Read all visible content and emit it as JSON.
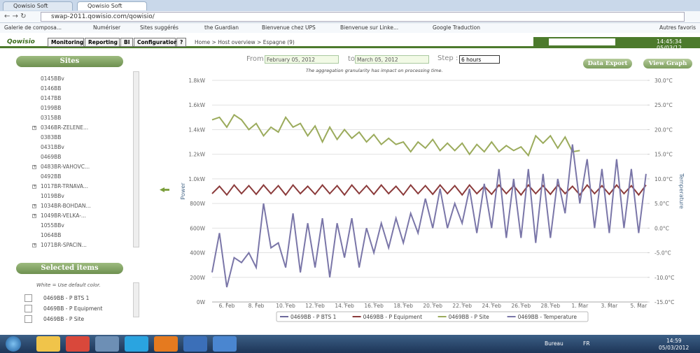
{
  "browser": {
    "tabs": [
      "Qowisio Soft",
      "Qowisio Soft"
    ],
    "url": "swap-2011.qowisio.com/qowisio/",
    "bookmarks": [
      "Galerie de composa...",
      "Numériser",
      "Sites suggérés",
      "the Guardian",
      "Bienvenue chez UPS",
      "Bienvenue sur Linke...",
      "Google Traduction"
    ],
    "other_bookmarks": "Autres favoris"
  },
  "app": {
    "logo": "Qowisio",
    "menu": [
      "Monitoring",
      "Reporting",
      "BI",
      "Configuration",
      "?"
    ],
    "breadcrumb": "Home > Host overview > Espagne (9)",
    "clock": "14:45:34 05/03/12"
  },
  "sites": {
    "title": "Sites",
    "items": [
      "0145BBv",
      "0146BB",
      "0147BB",
      "0199BB",
      "0315BB",
      "0346BR-ZELENE...",
      "0383BB",
      "0431BBv",
      "0469BB",
      "0483BR-VAHOVC...",
      "0492BB",
      "1017BR-TRNAVA...",
      "1019BBv",
      "1034BR-BOHDAN...",
      "1049BR-VELKA-...",
      "1055BBv",
      "1064BB",
      "1071BR-SPACIN..."
    ]
  },
  "selected": {
    "title": "Selected items",
    "hint": "White = Use default color.",
    "items": [
      "0469BB - P BTS 1",
      "0469BB - P Equipment",
      "0469BB - P Site"
    ]
  },
  "controls": {
    "from_label": "From",
    "from": "February 05, 2012",
    "to_label": "to",
    "to": "March 05, 2012",
    "step_label": "Step :",
    "step": "6 hours",
    "note": "The aggregation granularity has impact on processing time.",
    "buttons": [
      "Data Export",
      "View Graph"
    ]
  },
  "chart_data": {
    "type": "line",
    "y_label": "Power",
    "y2_label": "Temperature",
    "x": [
      5,
      5.5,
      6,
      6.5,
      7,
      7.5,
      8,
      8.5,
      9,
      9.5,
      10,
      10.5,
      11,
      11.5,
      12,
      12.5,
      13,
      13.5,
      14,
      14.5,
      15,
      15.5,
      16,
      16.5,
      17,
      17.5,
      18,
      18.5,
      19,
      19.5,
      20,
      20.5,
      21,
      21.5,
      22,
      22.5,
      23,
      23.5,
      24,
      24.5,
      25,
      25.5,
      26,
      26.5,
      27,
      27.5,
      28,
      28.5,
      29,
      29.5,
      30,
      30.5,
      31,
      31.5,
      32,
      32.5,
      33,
      33.5,
      34,
      34.5
    ],
    "xlim": [
      5,
      34.6
    ],
    "xticks": [
      {
        "value": 6,
        "label": "6. Feb"
      },
      {
        "value": 8,
        "label": "8. Feb"
      },
      {
        "value": 10,
        "label": "10. Feb"
      },
      {
        "value": 12,
        "label": "12. Feb"
      },
      {
        "value": 14,
        "label": "14. Feb"
      },
      {
        "value": 16,
        "label": "16. Feb"
      },
      {
        "value": 18,
        "label": "18. Feb"
      },
      {
        "value": 20,
        "label": "20. Feb"
      },
      {
        "value": 22,
        "label": "22. Feb"
      },
      {
        "value": 24,
        "label": "24. Feb"
      },
      {
        "value": 26,
        "label": "26. Feb"
      },
      {
        "value": 28,
        "label": "28. Feb"
      },
      {
        "value": 30,
        "label": "1. Mar"
      },
      {
        "value": 32,
        "label": "3. Mar"
      },
      {
        "value": 34,
        "label": "5. Mar"
      }
    ],
    "ylim": [
      0,
      1800
    ],
    "yticks": [
      {
        "value": 0,
        "label": "0W"
      },
      {
        "value": 200,
        "label": "200W"
      },
      {
        "value": 400,
        "label": "400W"
      },
      {
        "value": 600,
        "label": "600W"
      },
      {
        "value": 800,
        "label": "800W"
      },
      {
        "value": 1000,
        "label": "1.0kW"
      },
      {
        "value": 1200,
        "label": "1.2kW"
      },
      {
        "value": 1400,
        "label": "1.4kW"
      },
      {
        "value": 1600,
        "label": "1.6kW"
      },
      {
        "value": 1800,
        "label": "1.8kW"
      }
    ],
    "y2lim": [
      -15,
      30
    ],
    "y2ticks": [
      {
        "value": -15,
        "label": "-15.0°C"
      },
      {
        "value": -10,
        "label": "-10.0°C"
      },
      {
        "value": -5,
        "label": "-5.0°C"
      },
      {
        "value": 0,
        "label": "0.0°C"
      },
      {
        "value": 5,
        "label": "5.0°C"
      },
      {
        "value": 10,
        "label": "10.0°C"
      },
      {
        "value": 15,
        "label": "15.0°C"
      },
      {
        "value": 20,
        "label": "20.0°C"
      },
      {
        "value": 25,
        "label": "25.0°C"
      },
      {
        "value": 30,
        "label": "30.0°C"
      }
    ],
    "grid": true,
    "series": [
      {
        "name": "0469BB - P BTS 1",
        "color": "#6e6a9c",
        "values": [
          null,
          null,
          null,
          null,
          null,
          null,
          null,
          null,
          null,
          null,
          null,
          null,
          null,
          null,
          null,
          null,
          null,
          null,
          null,
          null,
          null,
          null,
          null,
          null,
          null,
          null,
          null,
          null,
          null,
          null,
          null,
          null,
          null,
          null,
          null,
          null,
          null,
          null,
          null,
          null,
          null,
          null,
          null,
          null,
          null,
          null,
          null,
          null,
          null,
          null,
          null,
          null,
          null,
          null,
          null,
          null,
          null,
          null,
          null,
          null
        ]
      },
      {
        "name": "0469BB - P Equipment",
        "color": "#8b3b3b",
        "values": [
          880,
          940,
          870,
          950,
          880,
          945,
          875,
          950,
          880,
          945,
          870,
          950,
          880,
          940,
          875,
          950,
          880,
          945,
          870,
          950,
          880,
          945,
          875,
          950,
          880,
          940,
          870,
          950,
          880,
          945,
          875,
          950,
          880,
          945,
          870,
          950,
          880,
          940,
          875,
          950,
          880,
          945,
          870,
          950,
          880,
          945,
          875,
          950,
          880,
          940,
          870,
          950,
          880,
          945,
          875,
          950,
          880,
          945,
          870,
          950
        ]
      },
      {
        "name": "0469BB - P Site",
        "color": "#9bab5c",
        "values": [
          1480,
          1500,
          1420,
          1520,
          1480,
          1400,
          1450,
          1350,
          1420,
          1380,
          1500,
          1420,
          1450,
          1350,
          1430,
          1300,
          1420,
          1320,
          1400,
          1330,
          1380,
          1300,
          1360,
          1280,
          1330,
          1280,
          1300,
          1220,
          1300,
          1250,
          1320,
          1230,
          1290,
          1230,
          1290,
          1200,
          1280,
          1220,
          1300,
          1220,
          1270,
          1230,
          1260,
          1190,
          1350,
          1290,
          1350,
          1250,
          1340,
          1220,
          1230,
          null,
          null,
          null,
          null,
          null,
          null,
          null,
          null,
          null
        ]
      },
      {
        "name": "0469BB - Temperature",
        "color": "#7a76a8",
        "axis": "y2",
        "values": [
          -9,
          -1,
          -12,
          -6,
          -7,
          -5,
          -8,
          5,
          -4,
          -3,
          -8,
          3,
          -9,
          1,
          -8,
          2,
          -10,
          1,
          -6,
          2,
          -8,
          0,
          -5,
          1,
          -4,
          2,
          -3,
          3,
          -1,
          6,
          0,
          8,
          0,
          5,
          1,
          8,
          -1,
          9,
          0,
          12,
          -2,
          10,
          -2,
          12,
          -3,
          11,
          -2,
          10,
          3,
          17,
          5,
          14,
          0,
          12,
          -1,
          14,
          0,
          12,
          -1,
          11
        ]
      }
    ]
  },
  "taskbar": {
    "desktop": "Bureau",
    "lang": "FR",
    "time": "14:59",
    "date": "05/03/2012"
  }
}
